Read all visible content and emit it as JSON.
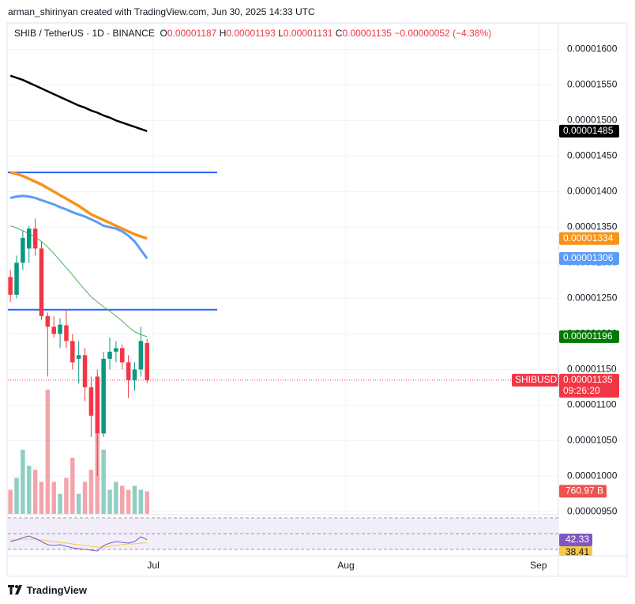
{
  "chart_data": {
    "type": "candlestick",
    "attribution": "arman_shirinyan created with TradingView.com, Jun 30, 2025 14:33 UTC",
    "symbol": "SHIB / TetherUS · 1D · BINANCE",
    "ohlc_letters": [
      "O",
      "H",
      "L",
      "C"
    ],
    "change": "−0.00000052 (−4.38%)",
    "ticker": "SHIBUSDT",
    "countdown": "09:26:20",
    "brand": "TradingView",
    "up_color": "#089981",
    "down_color": "#f23645",
    "open": [
      1.28e-05,
      1.255e-05,
      1.3e-05,
      1.32e-05,
      1.348e-05,
      1.32e-05,
      1.225e-05,
      1.21e-05,
      1.2e-05,
      1.212e-05,
      1.19e-05,
      1.165e-05,
      1.17e-05,
      1.125e-05,
      1.14e-05,
      1.06e-05,
      1.165e-05,
      1.175e-05,
      1.18e-05,
      1.16e-05,
      1.135e-05,
      1.15e-05,
      1.187e-05
    ],
    "high": [
      1.29e-05,
      1.31e-05,
      1.345e-05,
      1.352e-05,
      1.362e-05,
      1.33e-05,
      1.23e-05,
      1.225e-05,
      1.222e-05,
      1.235e-05,
      1.2e-05,
      1.19e-05,
      1.18e-05,
      1.14e-05,
      1.15e-05,
      1.175e-05,
      1.195e-05,
      1.19e-05,
      1.185e-05,
      1.17e-05,
      1.16e-05,
      1.21e-05,
      1.193e-05
    ],
    "low": [
      1.245e-05,
      1.25e-05,
      1.29e-05,
      1.3e-05,
      1.31e-05,
      1.22e-05,
      1.14e-05,
      1.195e-05,
      1.18e-05,
      1.18e-05,
      1.15e-05,
      1.13e-05,
      1.105e-05,
      1.055e-05,
      1e-05,
      1.055e-05,
      1.15e-05,
      1.16e-05,
      1.15e-05,
      1.11e-05,
      1.12e-05,
      1.14e-05,
      1.131e-05
    ],
    "close": [
      1.255e-05,
      1.3e-05,
      1.335e-05,
      1.348e-05,
      1.32e-05,
      1.225e-05,
      1.21e-05,
      1.2e-05,
      1.213e-05,
      1.19e-05,
      1.16e-05,
      1.17e-05,
      1.125e-05,
      1.085e-05,
      1.06e-05,
      1.165e-05,
      1.175e-05,
      1.18e-05,
      1.16e-05,
      1.135e-05,
      1.15e-05,
      1.19e-05,
      1.135e-05
    ],
    "series": [
      {
        "color": "#000000",
        "values": [
          1.563e-05,
          1.56e-05,
          1.557e-05,
          1.553e-05,
          1.549e-05,
          1.545e-05,
          1.541e-05,
          1.537e-05,
          1.533e-05,
          1.529e-05,
          1.525e-05,
          1.521e-05,
          1.518e-05,
          1.514e-05,
          1.511e-05,
          1.507e-05,
          1.504e-05,
          1.5e-05,
          1.497e-05,
          1.494e-05,
          1.491e-05,
          1.488e-05,
          1.485e-05
        ]
      },
      {
        "color": "#f7931a",
        "values": [
          1.427e-05,
          1.425e-05,
          1.422e-05,
          1.418e-05,
          1.414e-05,
          1.41e-05,
          1.405e-05,
          1.4e-05,
          1.395e-05,
          1.39e-05,
          1.385e-05,
          1.38e-05,
          1.374e-05,
          1.368e-05,
          1.364e-05,
          1.36e-05,
          1.356e-05,
          1.352e-05,
          1.348e-05,
          1.344e-05,
          1.34e-05,
          1.337e-05,
          1.334e-05
        ]
      },
      {
        "color": "#5b9cf6",
        "values": [
          1.391e-05,
          1.393e-05,
          1.394e-05,
          1.393e-05,
          1.391e-05,
          1.388e-05,
          1.385e-05,
          1.382e-05,
          1.378e-05,
          1.375e-05,
          1.371e-05,
          1.368e-05,
          1.365e-05,
          1.361e-05,
          1.357e-05,
          1.352e-05,
          1.35e-05,
          1.348e-05,
          1.344e-05,
          1.338e-05,
          1.33e-05,
          1.318e-05,
          1.306e-05
        ]
      },
      {
        "color": "#4caf50",
        "values": [
          1.352e-05,
          1.349e-05,
          1.345e-05,
          1.341e-05,
          1.336e-05,
          1.33e-05,
          1.322e-05,
          1.313e-05,
          1.303e-05,
          1.293e-05,
          1.283e-05,
          1.272e-05,
          1.262e-05,
          1.252e-05,
          1.245e-05,
          1.238e-05,
          1.232e-05,
          1.225e-05,
          1.218e-05,
          1.21e-05,
          1.203e-05,
          1.199e-05,
          1.196e-05
        ]
      }
    ],
    "hlines": [
      1.427e-05,
      1.234e-05
    ],
    "hline_color": "#2962ff",
    "volume": [
      810,
      1215,
      2160,
      1620,
      1485,
      1080,
      4185,
      1080,
      675,
      1215,
      1890,
      675,
      1080,
      1485,
      2700,
      2160,
      810,
      1080,
      945,
      810,
      945,
      810,
      760.97
    ],
    "volume_last_label": "760.97 B",
    "volume_ylim": [
      0,
      16500
    ],
    "rsi": [
      40,
      42,
      45,
      47,
      44,
      40,
      36,
      35,
      36,
      34,
      32,
      31,
      30,
      29,
      28,
      35,
      38,
      40,
      39,
      38,
      40,
      46,
      42.33
    ],
    "rsi_signal": [
      42,
      42,
      43,
      43,
      43,
      42,
      41,
      40,
      39,
      38,
      37,
      36,
      35,
      34,
      33,
      33,
      34,
      35,
      36,
      37,
      37,
      38,
      38.41
    ],
    "rsi_color": "#7e57c2",
    "rsi_signal_color": "#f7c948",
    "rsi_ylim": [
      25,
      75
    ],
    "rsi_levels": [
      30,
      50,
      70
    ],
    "ylim": [
      9.47e-06,
      1.636e-05
    ],
    "yticks": [
      {
        "value": 1.6e-05,
        "label": "0.00001600"
      },
      {
        "value": 1.55e-05,
        "label": "0.00001550"
      },
      {
        "value": 1.5e-05,
        "label": "0.00001500"
      },
      {
        "value": 1.45e-05,
        "label": "0.00001450"
      },
      {
        "value": 1.4e-05,
        "label": "0.00001400"
      },
      {
        "value": 1.35e-05,
        "label": "0.00001350"
      },
      {
        "value": 1.3e-05,
        "label": "0.00001300"
      },
      {
        "value": 1.25e-05,
        "label": "0.00001250"
      },
      {
        "value": 1.2e-05,
        "label": "0.00001200"
      },
      {
        "value": 1.15e-05,
        "label": "0.00001150"
      },
      {
        "value": 1.1e-05,
        "label": "0.00001100"
      },
      {
        "value": 1.05e-05,
        "label": "0.00001050"
      },
      {
        "value": 1e-05,
        "label": "0.00001000"
      },
      {
        "value": 9.5e-06,
        "label": "0.00000950"
      }
    ],
    "xlim": [
      -0.4,
      88.2
    ],
    "xticks": [
      {
        "value": 23,
        "label": "Jul"
      },
      {
        "value": 54,
        "label": "Aug"
      },
      {
        "value": 85,
        "label": "Sep"
      }
    ],
    "grid": true
  }
}
